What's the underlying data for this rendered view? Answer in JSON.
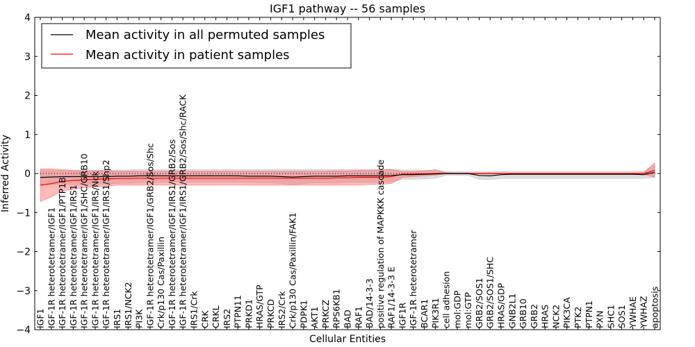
{
  "chart_data": {
    "type": "line",
    "title": "IGF1 pathway -- 56 samples",
    "xlabel": "Cellular Entities",
    "ylabel": "Inferred Activity",
    "ylim": [
      -4,
      4
    ],
    "yticks": [
      -4,
      -3,
      -2,
      -1,
      0,
      1,
      2,
      3,
      4
    ],
    "grid": false,
    "legend_position": "top-left",
    "colors": {
      "permuted": "#000000",
      "patient": "#ff0000",
      "permuted_band": "#b3b3b3",
      "patient_band": "#ff6666"
    },
    "categories": [
      "IGF1",
      "IGF-1R heterotetramer/IGF1",
      "IGF-1R heterotetramer/IGF1/PTP1B",
      "IGF-1R heterotetramer/IGF1/IRS1",
      "IGF-1R heterotetramer/IGF1/SHC/GRB10",
      "IGF-1R heterotetramer/IGF1/IRS/Nck",
      "IGF-1R heterotetramer/IGF1/IRS1/Shp2",
      "IRS1",
      "IRS1/NCK2",
      "PI3K",
      "IGF-1R heterotetramer/IGF1/GRB2/Sos/Shc",
      "Crk/p130 Cas/Paxillin",
      "IGF-1R heterotetramer/IGF1/IRS1/GRB2/Sos",
      "IGF-1R heterotetramer/IGF1/IRS1/GRB2/Sos/Shc/RACK",
      "IRS1/Crk",
      "CRK",
      "CRKL",
      "IRS2",
      "PTPN11",
      "PRKD1",
      "HRAS/GTP",
      "PRKCD",
      "IRS2/Crk",
      "Crk/p130 Cas/Paxillin/FAK1",
      "PDPK1",
      "AKT1",
      "PRKCZ",
      "RPS6KB1",
      "BAD",
      "RAF1",
      "BAD/14-3-3",
      "positive regulation of MAPKKK cascade",
      "RAF1/14-3-3 E",
      "IGF1R",
      "IGF-1R heterotetramer",
      "BCAR1",
      "PIK3R1",
      "cell adhesion",
      "mol:GDP",
      "mol:GTP",
      "GRB2/SOS1",
      "GRB2/SOS1/SHC",
      "HRAS/GDP",
      "GNB2L1",
      "GRB10",
      "GRB2",
      "HRAS",
      "NCK2",
      "PIK3CA",
      "PTK2",
      "PTPN1",
      "PXN",
      "SHC1",
      "SOS1",
      "YWHAE",
      "YWHAZ",
      "apoptosis"
    ],
    "series": [
      {
        "name": "Mean activity in all permuted samples",
        "values": [
          -0.1,
          -0.09,
          -0.08,
          -0.08,
          -0.08,
          -0.08,
          -0.08,
          -0.07,
          -0.07,
          -0.06,
          -0.06,
          -0.06,
          -0.06,
          -0.06,
          -0.06,
          -0.06,
          -0.06,
          -0.06,
          -0.06,
          -0.07,
          -0.07,
          -0.07,
          -0.08,
          -0.09,
          -0.08,
          -0.07,
          -0.07,
          -0.07,
          -0.06,
          -0.06,
          -0.06,
          -0.06,
          -0.05,
          -0.03,
          -0.03,
          -0.02,
          -0.01,
          0.0,
          0.0,
          0.0,
          -0.05,
          -0.06,
          -0.03,
          -0.02,
          -0.02,
          -0.02,
          -0.02,
          -0.02,
          -0.02,
          -0.02,
          -0.02,
          -0.02,
          -0.02,
          -0.02,
          -0.02,
          -0.03,
          0.03
        ],
        "lower": [
          -0.28,
          -0.28,
          -0.28,
          -0.28,
          -0.28,
          -0.28,
          -0.27,
          -0.26,
          -0.25,
          -0.24,
          -0.23,
          -0.23,
          -0.22,
          -0.22,
          -0.22,
          -0.22,
          -0.22,
          -0.22,
          -0.22,
          -0.23,
          -0.24,
          -0.24,
          -0.26,
          -0.28,
          -0.26,
          -0.24,
          -0.24,
          -0.24,
          -0.23,
          -0.23,
          -0.23,
          -0.22,
          -0.22,
          -0.15,
          -0.15,
          -0.14,
          -0.12,
          -0.05,
          -0.05,
          -0.05,
          -0.15,
          -0.16,
          -0.13,
          -0.13,
          -0.13,
          -0.13,
          -0.13,
          -0.13,
          -0.13,
          -0.13,
          -0.13,
          -0.13,
          -0.13,
          -0.13,
          -0.13,
          -0.13,
          -0.1
        ],
        "upper": [
          0.08,
          0.08,
          0.08,
          0.08,
          0.08,
          0.08,
          0.08,
          0.09,
          0.09,
          0.1,
          0.1,
          0.1,
          0.1,
          0.1,
          0.1,
          0.1,
          0.1,
          0.1,
          0.1,
          0.1,
          0.1,
          0.1,
          0.1,
          0.1,
          0.1,
          0.1,
          0.1,
          0.1,
          0.1,
          0.11,
          0.11,
          0.11,
          0.12,
          0.09,
          0.09,
          0.09,
          0.08,
          0.05,
          0.05,
          0.05,
          0.05,
          0.05,
          0.06,
          0.06,
          0.06,
          0.06,
          0.06,
          0.06,
          0.06,
          0.06,
          0.06,
          0.06,
          0.06,
          0.06,
          0.06,
          0.07,
          0.22
        ]
      },
      {
        "name": "Mean activity in patient samples",
        "values": [
          -0.3,
          -0.26,
          -0.2,
          -0.18,
          -0.16,
          -0.15,
          -0.14,
          -0.13,
          -0.13,
          -0.12,
          -0.12,
          -0.12,
          -0.12,
          -0.12,
          -0.12,
          -0.12,
          -0.12,
          -0.12,
          -0.12,
          -0.12,
          -0.12,
          -0.12,
          -0.12,
          -0.12,
          -0.12,
          -0.12,
          -0.12,
          -0.11,
          -0.11,
          -0.1,
          -0.1,
          -0.1,
          -0.08,
          -0.02,
          -0.01,
          -0.01,
          0.0,
          0.0,
          0.0,
          0.0,
          0.0,
          0.0,
          0.0,
          0.0,
          0.0,
          0.0,
          0.0,
          0.0,
          0.0,
          0.0,
          0.0,
          0.0,
          0.0,
          0.0,
          0.0,
          0.0,
          0.08
        ],
        "lower": [
          -0.72,
          -0.6,
          -0.45,
          -0.4,
          -0.36,
          -0.34,
          -0.33,
          -0.3,
          -0.3,
          -0.3,
          -0.3,
          -0.3,
          -0.3,
          -0.3,
          -0.3,
          -0.3,
          -0.3,
          -0.3,
          -0.3,
          -0.3,
          -0.3,
          -0.3,
          -0.3,
          -0.3,
          -0.3,
          -0.3,
          -0.3,
          -0.3,
          -0.3,
          -0.3,
          -0.28,
          -0.28,
          -0.26,
          -0.1,
          -0.08,
          -0.06,
          -0.04,
          -0.01,
          -0.01,
          -0.01,
          -0.01,
          -0.01,
          -0.01,
          -0.01,
          -0.01,
          -0.01,
          -0.01,
          -0.01,
          -0.01,
          -0.01,
          -0.01,
          -0.01,
          -0.01,
          -0.01,
          -0.01,
          -0.02,
          -0.1
        ],
        "upper": [
          0.12,
          0.12,
          0.1,
          0.08,
          0.07,
          0.07,
          0.07,
          0.06,
          0.06,
          0.06,
          0.06,
          0.06,
          0.06,
          0.06,
          0.06,
          0.06,
          0.06,
          0.06,
          0.06,
          0.06,
          0.06,
          0.06,
          0.06,
          0.06,
          0.06,
          0.06,
          0.06,
          0.07,
          0.07,
          0.08,
          0.08,
          0.09,
          0.1,
          0.05,
          0.05,
          0.06,
          0.1,
          0.02,
          0.01,
          0.01,
          0.01,
          0.01,
          0.01,
          0.01,
          0.01,
          0.01,
          0.01,
          0.01,
          0.01,
          0.01,
          0.01,
          0.01,
          0.01,
          0.01,
          0.01,
          0.02,
          0.28
        ]
      }
    ]
  }
}
